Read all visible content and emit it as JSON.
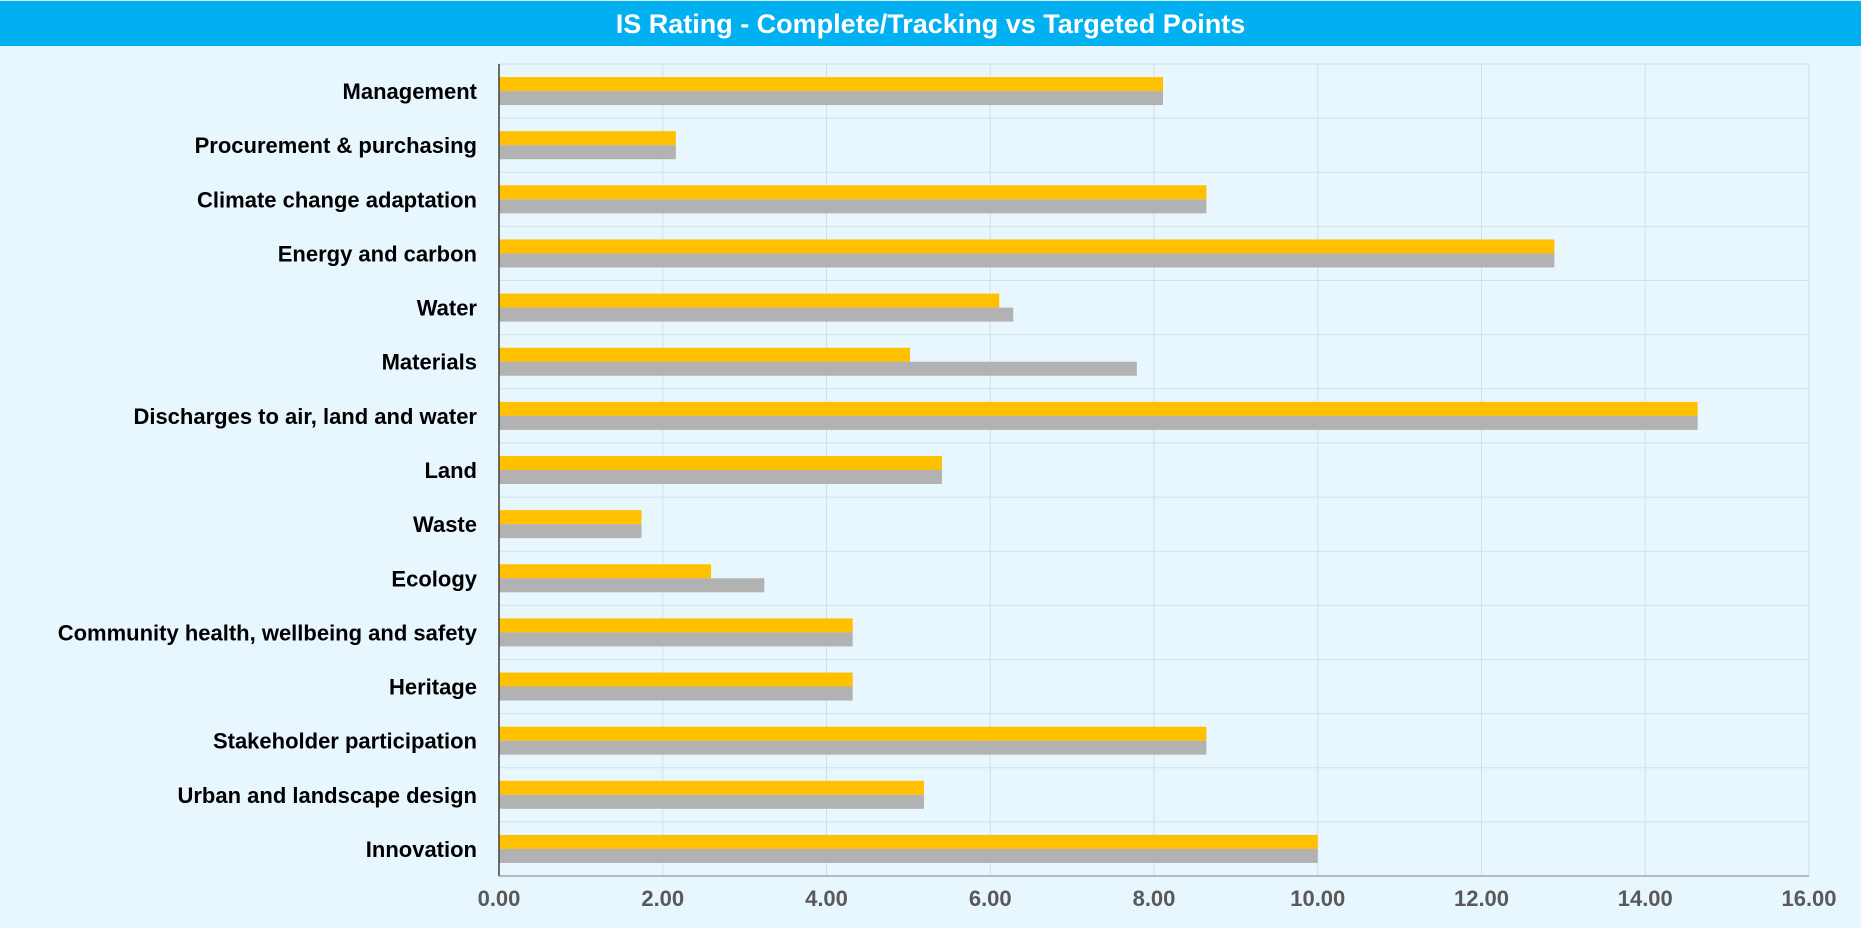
{
  "chart_data": {
    "type": "bar",
    "orientation": "horizontal",
    "title": "IS Rating - Complete/Tracking vs Targeted Points",
    "categories": [
      "Management",
      "Procurement & purchasing",
      "Climate change adaptation",
      "Energy and carbon",
      "Water",
      "Materials",
      "Discharges to air, land and water",
      "Land",
      "Waste",
      "Ecology",
      "Community health, wellbeing and safety",
      "Heritage",
      "Stakeholder participation",
      "Urban and landscape design",
      "Innovation"
    ],
    "series": [
      {
        "color": "#ffc000",
        "values": [
          8.11,
          2.16,
          8.64,
          12.89,
          6.11,
          5.02,
          14.64,
          5.41,
          1.74,
          2.59,
          4.32,
          4.32,
          8.64,
          5.19,
          10.0
        ]
      },
      {
        "color": "#b2b2b2",
        "values": [
          8.11,
          2.16,
          8.64,
          12.89,
          6.28,
          7.79,
          14.64,
          5.41,
          1.74,
          3.24,
          4.32,
          4.32,
          8.64,
          5.19,
          10.0
        ]
      }
    ],
    "xlim": [
      0,
      16
    ],
    "xticks": [
      "0.00",
      "2.00",
      "4.00",
      "6.00",
      "8.00",
      "10.00",
      "12.00",
      "14.00",
      "16.00"
    ],
    "xtick_values": [
      0,
      2,
      4,
      6,
      8,
      10,
      12,
      14,
      16
    ],
    "grid": true,
    "legend": "none",
    "colors": {
      "title_background": "#00b0f0",
      "title_text": "#ffffff",
      "plot_background": "#e8f6fd",
      "gridline": "#d0e0e8"
    }
  }
}
